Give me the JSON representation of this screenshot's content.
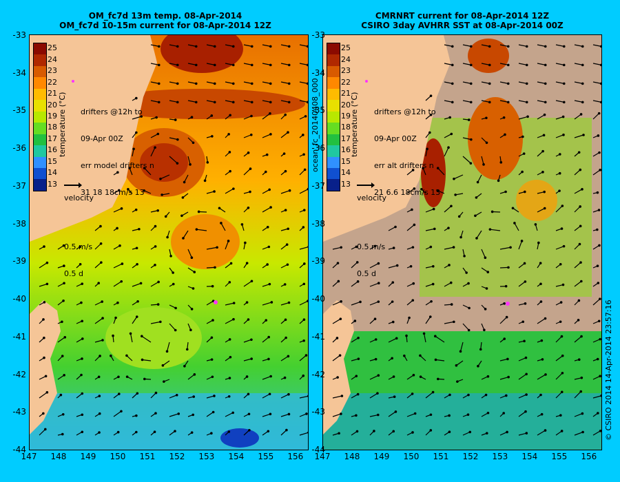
{
  "left_panel": {
    "title_line1": "OM_fc7d 13m temp. 08-Apr-2014",
    "title_line2": "OM_fc7d 10-15m current for 08-Apr-2014 12Z",
    "drifters": [
      "drifters @12h to",
      "09-Apr 00Z",
      "err model drifters n",
      "31 18 18cm/s 13"
    ]
  },
  "right_panel": {
    "title_line1": "CMRNRT current for 08-Apr-2014 12Z",
    "title_line2": "CSIRO 3day AVHRR SST at 08-Apr-2014 00Z",
    "drifters": [
      "drifters @12h to",
      "09-Apr 00Z",
      "err alt drifters n",
      "21 6.6 18cm/s 13"
    ]
  },
  "colorbar": {
    "title": "temperature (°C)",
    "ticks": [
      "25",
      "24",
      "23",
      "22",
      "21",
      "20",
      "19",
      "18",
      "17",
      "16",
      "15",
      "14",
      "13"
    ],
    "colors": [
      "#8b0a00",
      "#b02800",
      "#d85a00",
      "#ff8800",
      "#ffbb00",
      "#e8e000",
      "#b8e800",
      "#66dd22",
      "#22c040",
      "#20c8a0",
      "#3090ff",
      "#1050d0",
      "#08208a"
    ]
  },
  "velocity_legend": {
    "label1": "velocity",
    "label2": "0.5 m/s",
    "label3": "0.5 d"
  },
  "axes": {
    "y_ticks": [
      "-33",
      "-34",
      "-35",
      "-36",
      "-37",
      "-38",
      "-39",
      "-40",
      "-41",
      "-42",
      "-43",
      "-44"
    ],
    "x_ticks": [
      "147",
      "148",
      "149",
      "150",
      "151",
      "152",
      "153",
      "154",
      "155",
      "156"
    ]
  },
  "side_label": "ocean_fc_20140408_000",
  "credit": "© CSIRO 2014  14-Apr-2014 23:57:16",
  "colors": {
    "background": "#00ccff",
    "land": "#f5c597",
    "cloud": "#c4a48c",
    "drifter": "#ff33ff"
  }
}
